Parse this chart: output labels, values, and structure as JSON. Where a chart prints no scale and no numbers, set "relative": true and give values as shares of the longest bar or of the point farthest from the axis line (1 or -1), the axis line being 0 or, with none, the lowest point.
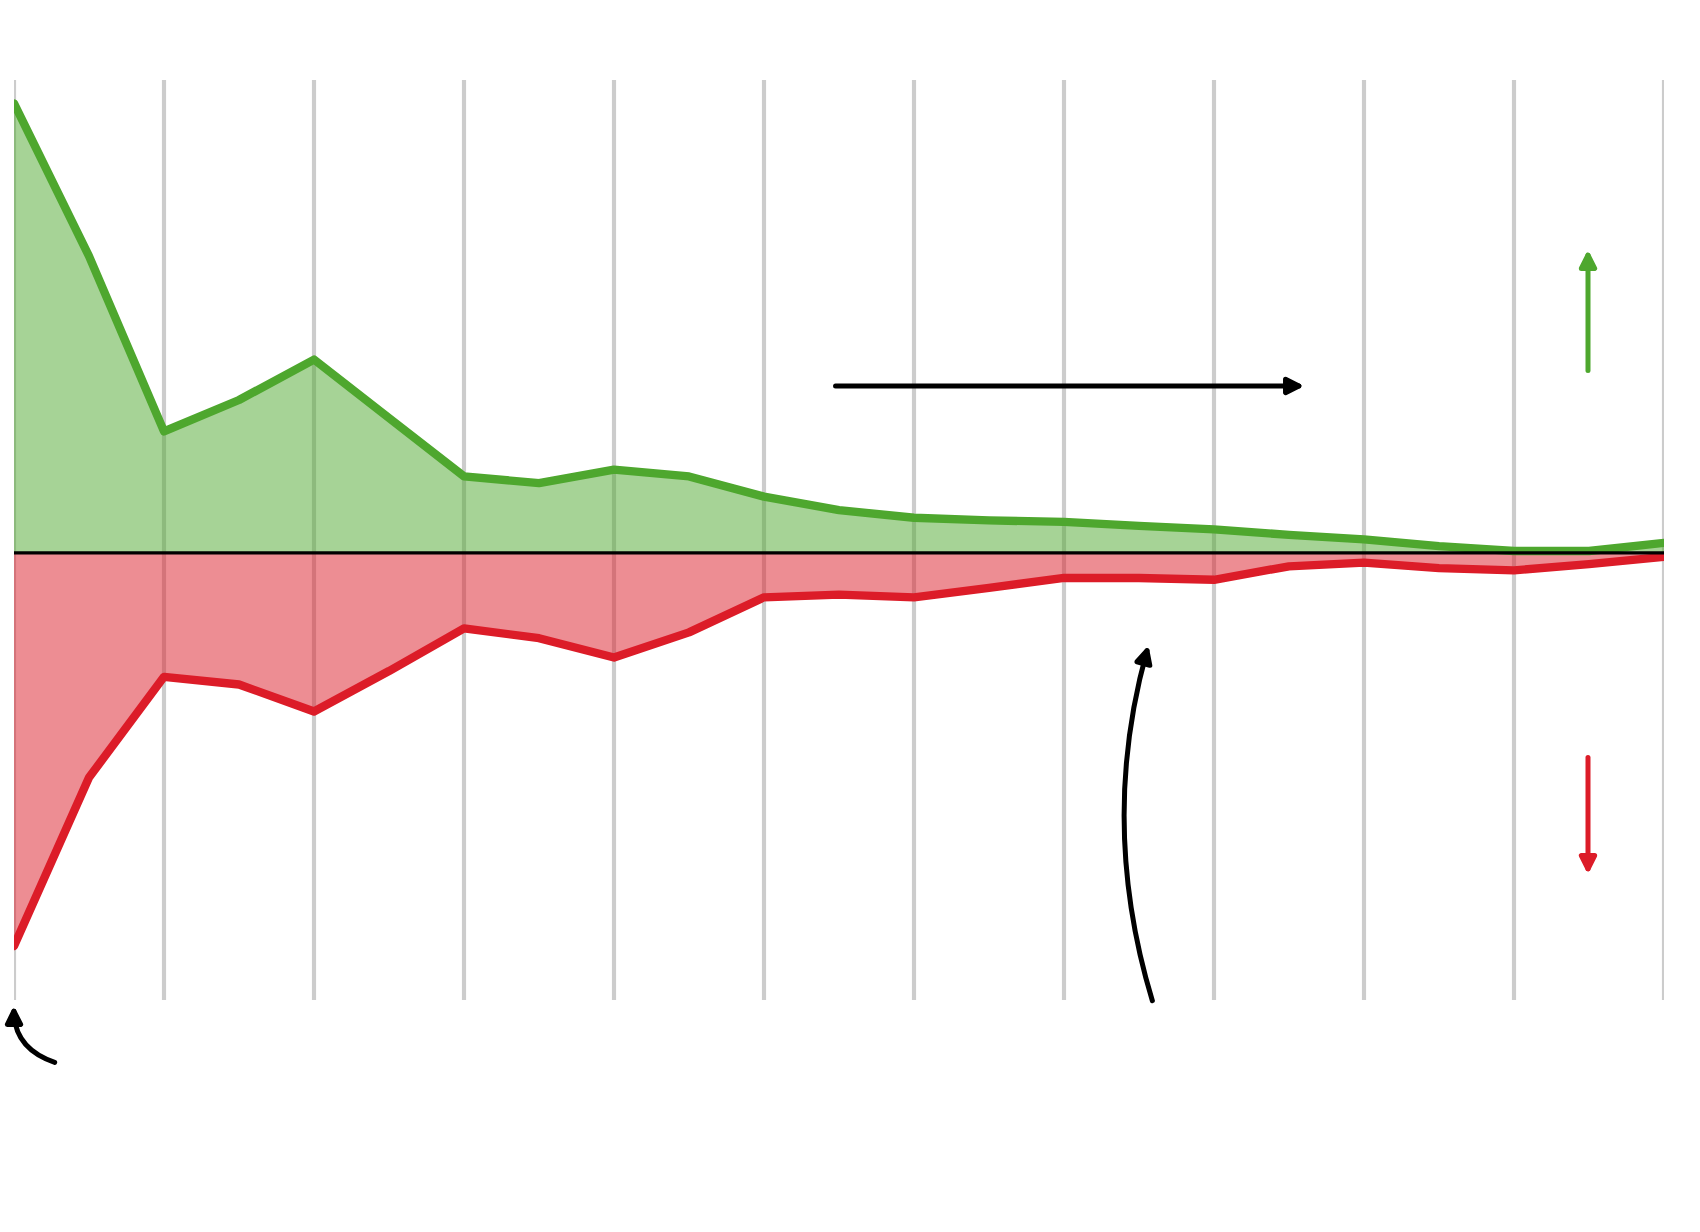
{
  "chart_data": {
    "type": "area",
    "relative": true,
    "grid": "x",
    "categories": [
      null,
      null,
      null,
      null,
      null,
      null,
      null,
      null,
      null,
      null,
      null,
      null,
      null,
      null,
      null,
      null,
      null,
      null,
      null,
      null,
      null,
      null,
      null
    ],
    "series": [
      {
        "color": "#4ea72e",
        "values": [
          1.0,
          0.66,
          0.27,
          0.34,
          0.43,
          0.3,
          0.17,
          0.155,
          0.185,
          0.17,
          0.125,
          0.095,
          0.078,
          0.072,
          0.069,
          0.06,
          0.052,
          0.04,
          0.03,
          0.015,
          0.004,
          0.004,
          0.022
        ]
      },
      {
        "color": "#dc1c28",
        "values": [
          -0.875,
          -0.5,
          -0.276,
          -0.293,
          -0.353,
          -0.263,
          -0.168,
          -0.19,
          -0.233,
          -0.177,
          -0.099,
          -0.093,
          -0.099,
          -0.078,
          -0.056,
          -0.056,
          -0.06,
          -0.03,
          -0.022,
          -0.034,
          -0.039,
          -0.025,
          -0.009
        ]
      }
    ]
  }
}
